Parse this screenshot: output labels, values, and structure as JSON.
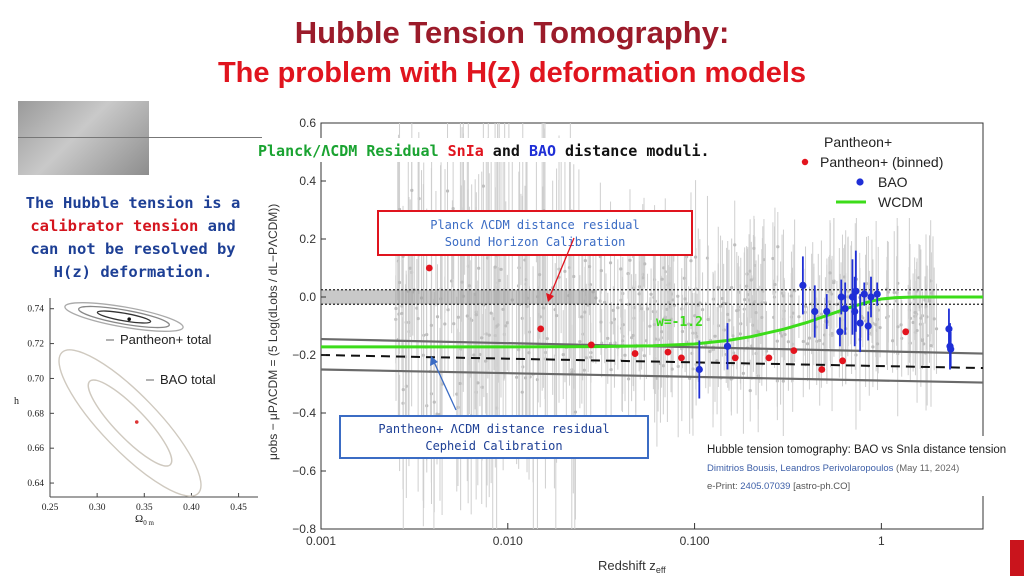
{
  "slide": {
    "title": "Hubble Tension Tomography:",
    "subtitle": "The problem with H(z) deformation models",
    "left_text": {
      "l1": "The Hubble tension is a",
      "l2a": "calibrator tension",
      "l2b": " and",
      "l3": "can not be resolved by",
      "l4": "H(z) deformation."
    },
    "citation": {
      "title": "Hubble tension tomography: BAO vs SnIa distance tension",
      "authors": "Dimitrios Bousis, Leandros Perivolaropoulos",
      "date": " (May 11, 2024)",
      "eprint_label": "e-Print: ",
      "eprint_id": "2405.07039",
      "eprint_cat": " [astro-ph.CO]"
    }
  },
  "colors": {
    "title": "#9b1b2a",
    "subtitle": "#e0141e",
    "annot_red": "#e0141e",
    "annot_blue": "#3b6cc4",
    "bao": "#1f2fd6",
    "binned": "#e3141e",
    "wcdm": "#3cdc1a",
    "pantheon": "#c8c8c8"
  },
  "chart_data": [
    {
      "type": "scatter",
      "xscale": "log",
      "xlim": [
        0.001,
        3.5
      ],
      "ylim": [
        -0.8,
        0.6
      ],
      "xticks": [
        "0.001",
        "0.010",
        "0.100",
        "1"
      ],
      "yticks": [
        "0.6",
        "0.4",
        "0.2",
        "0.0",
        "−0.2",
        "−0.4",
        "−0.6",
        "−0.8"
      ],
      "xlabel": "Redshift z",
      "xlabel_sub": "eff",
      "ylabel": "μobs − μPΛCDM = (5 Log(dLobs / dL−PΛCDM))",
      "legend_position": "top-right",
      "legend": [
        "Pantheon+",
        "Pantheon+ (binned)",
        "BAO",
        "WCDM"
      ],
      "header_text": {
        "a": "Planck/ΛCDM Residual ",
        "b": "SnIa",
        "c": " and ",
        "d": "BAO",
        "e": " distance moduli."
      },
      "annotations": {
        "planck_l1": "Planck ΛCDM distance residual",
        "planck_l2": "Sound Horizon Calibration",
        "pantheon_l1": "Pantheon+ ΛCDM distance residual",
        "pantheon_l2": "Cepheid Calibration",
        "w_label": "w=-1.2"
      },
      "ref_lines": [
        {
          "style": "dotted",
          "y": 0.025
        },
        {
          "style": "dotted",
          "y": -0.025
        },
        {
          "style": "dashed",
          "x": [
            0.001,
            3.5
          ],
          "y": [
            -0.2,
            -0.245
          ]
        },
        {
          "style": "solid-grey",
          "x": [
            0.001,
            3.5
          ],
          "y": [
            -0.145,
            -0.195
          ]
        },
        {
          "style": "solid-grey",
          "x": [
            0.001,
            3.5
          ],
          "y": [
            -0.25,
            -0.295
          ]
        }
      ],
      "series": [
        {
          "name": "Pantheon+ (binned)",
          "x": [
            0.0038,
            0.015,
            0.028,
            0.048,
            0.072,
            0.085,
            0.165,
            0.25,
            0.34,
            0.48,
            0.62,
            1.35
          ],
          "y": [
            0.1,
            -0.11,
            -0.165,
            -0.195,
            -0.19,
            -0.21,
            -0.21,
            -0.21,
            -0.185,
            -0.25,
            -0.22,
            -0.12
          ]
        },
        {
          "name": "BAO",
          "x": [
            0.106,
            0.15,
            0.38,
            0.44,
            0.51,
            0.6,
            0.61,
            0.64,
            0.7,
            0.72,
            0.73,
            0.77,
            0.81,
            0.85,
            0.88,
            0.95,
            2.3,
            2.33,
            2.35
          ],
          "y": [
            -0.25,
            -0.17,
            0.04,
            -0.05,
            -0.05,
            -0.12,
            0.0,
            -0.04,
            0.0,
            -0.05,
            0.02,
            -0.09,
            0.01,
            -0.1,
            0.0,
            0.01,
            -0.11,
            -0.17,
            -0.18
          ],
          "yerr": [
            0.1,
            0.08,
            0.1,
            0.09,
            0.06,
            0.05,
            0.06,
            0.09,
            0.13,
            0.12,
            0.14,
            0.1,
            0.04,
            0.05,
            0.07,
            0.04,
            0.07,
            0.08,
            0.06
          ]
        },
        {
          "name": "WCDM",
          "x": [
            0.001,
            0.01,
            0.03,
            0.06,
            0.1,
            0.15,
            0.2,
            0.3,
            0.4,
            0.5,
            0.6,
            0.7,
            0.8,
            0.9,
            1.0,
            1.2,
            1.5,
            2.0,
            3.5
          ],
          "y": [
            -0.172,
            -0.172,
            -0.171,
            -0.168,
            -0.162,
            -0.15,
            -0.137,
            -0.111,
            -0.088,
            -0.066,
            -0.048,
            -0.033,
            -0.022,
            -0.013,
            -0.007,
            -0.002,
            0.0,
            0.0,
            0.0
          ]
        }
      ]
    },
    {
      "type": "contour",
      "xlabel": "Ω",
      "xlabel_sub": "0 m",
      "ylabel": "h",
      "xlim": [
        0.25,
        0.48
      ],
      "ylim": [
        0.63,
        0.75
      ],
      "xticks": [
        "0.25",
        "0.30",
        "0.35",
        "0.40",
        "0.45"
      ],
      "yticks": [
        "0.74",
        "0.72",
        "0.70",
        "0.68",
        "0.66",
        "0.64"
      ],
      "labels": {
        "pantheon": "Pantheon+ total",
        "bao": "BAO total"
      },
      "series": [
        {
          "name": "Pantheon+ total",
          "x": [
            0.334
          ],
          "y": [
            0.734
          ]
        },
        {
          "name": "BAO total",
          "x": [
            0.342
          ],
          "y": [
            0.675
          ]
        }
      ]
    }
  ]
}
